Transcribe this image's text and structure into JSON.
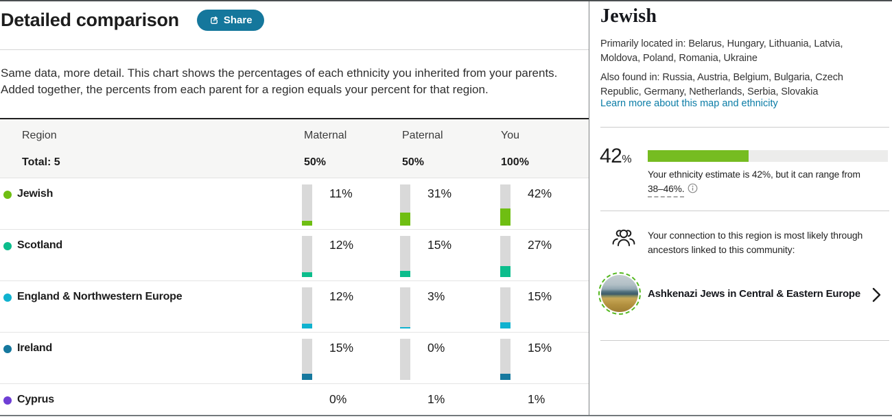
{
  "header": {
    "title": "Detailed comparison",
    "share_label": "Share",
    "share_color": "#15779c"
  },
  "description": "Same data, more detail. This chart shows the percentages of each ethnicity you inherited from your parents. Added together, the percents from each parent for a region equals your percent for that region.",
  "table": {
    "columns": [
      "Region",
      "Maternal",
      "Paternal",
      "You"
    ],
    "total_row": {
      "label": "Total: 5",
      "maternal": "50%",
      "paternal": "50%",
      "you": "100%"
    },
    "bar_track_color": "#d9d9d9",
    "rows": [
      {
        "region": "Jewish",
        "color": "#6fbe12",
        "maternal": 11,
        "paternal": 31,
        "you": 42,
        "bars": true
      },
      {
        "region": "Scotland",
        "color": "#0cbd8c",
        "maternal": 12,
        "paternal": 15,
        "you": 27,
        "bars": true
      },
      {
        "region": "England & Northwestern Europe",
        "color": "#10b2cf",
        "maternal": 12,
        "paternal": 3,
        "you": 15,
        "bars": true
      },
      {
        "region": "Ireland",
        "color": "#16789e",
        "maternal": 15,
        "paternal": 0,
        "you": 15,
        "bars": true
      },
      {
        "region": "Cyprus",
        "color": "#6f3fd5",
        "maternal": 0,
        "paternal": 1,
        "you": 1,
        "bars": false
      }
    ]
  },
  "detail_panel": {
    "title": "Jewish",
    "primarily_located": "Primarily located in: Belarus, Hungary, Lithuania, Latvia, Moldova, Poland, Romania, Ukraine",
    "also_found": "Also found in: Russia, Austria, Belgium, Bulgaria, Czech Republic, Germany, Netherlands, Serbia, Slovakia",
    "learn_more_link": "Learn more about this map and ethnicity",
    "link_color": "#0a7ca6",
    "estimate": {
      "percent": 42,
      "number": "42",
      "sign": "%",
      "bar_color": "#76bc21",
      "track_color": "#ececeb",
      "note_line1": "Your ethnicity estimate is 42%, but it can range from",
      "note_range": "38–46%."
    },
    "connection_text": "Your connection to this region is most likely through ancestors linked to this community:",
    "community": {
      "name": "Ashkenazi Jews in Central & Eastern Europe"
    }
  }
}
